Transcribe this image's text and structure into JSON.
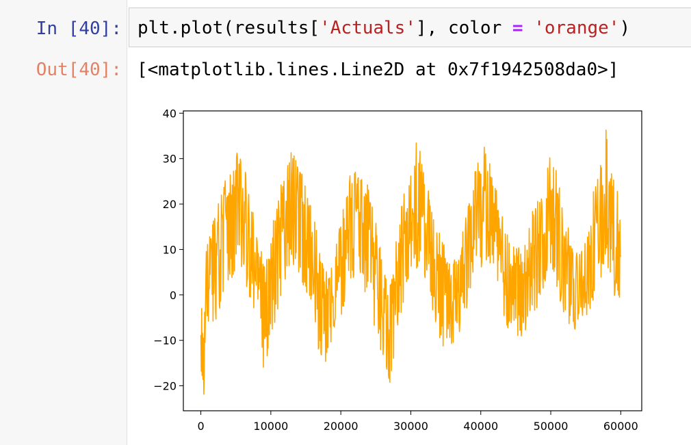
{
  "cell": {
    "in_prompt": "In [40]:",
    "out_prompt": "Out[40]:",
    "code": {
      "part1": "plt.plot(results[",
      "str1": "'Actuals'",
      "part2": "], color ",
      "op": "=",
      "space": " ",
      "str2": "'orange'",
      "part3": ")"
    },
    "output_text": "[<matplotlib.lines.Line2D at 0x7f1942508da0>]"
  },
  "colors": {
    "line": "#ffa500",
    "in_prompt": "#303f9f",
    "out_prompt": "#d84315",
    "string": "#ba2121",
    "operator": "#aa22ff"
  },
  "chart_data": {
    "type": "line",
    "title": "",
    "xlabel": "",
    "ylabel": "",
    "color": "orange",
    "xlim": [
      -2500,
      63000
    ],
    "ylim": [
      -25.5,
      40.5
    ],
    "x_ticks": [
      0,
      10000,
      20000,
      30000,
      40000,
      50000,
      60000
    ],
    "x_tick_labels": [
      "0",
      "10000",
      "20000",
      "30000",
      "40000",
      "50000",
      "60000"
    ],
    "y_ticks": [
      -20,
      -10,
      0,
      10,
      20,
      30,
      40
    ],
    "y_tick_labels": [
      "−20",
      "−10",
      "0",
      "10",
      "20",
      "30",
      "40"
    ],
    "grid": false,
    "series": [
      {
        "x": [
          0,
          400,
          800,
          1500,
          2500,
          3500,
          4500,
          5500,
          6500,
          7500,
          8200,
          9000,
          10000,
          11000,
          12000,
          13000,
          14000,
          15000,
          16000,
          16800,
          17500,
          18200,
          19000,
          20000,
          21000,
          22000,
          23000,
          24000,
          25000,
          26000,
          27000,
          28000,
          29000,
          30000,
          31000,
          32000,
          33000,
          34000,
          35000,
          36000,
          37000,
          38000,
          39000,
          40000,
          41000,
          42000,
          43000,
          44000,
          45000,
          46000,
          47000,
          48000,
          49000,
          50000,
          51000,
          52000,
          53000,
          54000,
          55000,
          56000,
          57000,
          58000,
          59000,
          60000
        ],
        "y": [
          -8,
          -22,
          3,
          7,
          8,
          13,
          16,
          20,
          14,
          8,
          2,
          -3,
          3,
          10,
          15,
          18,
          17,
          12,
          6,
          0,
          -4,
          -6,
          0,
          6,
          12,
          17,
          17,
          10,
          4,
          -3,
          -10,
          2,
          10,
          16,
          18,
          14,
          8,
          2,
          -2,
          -3,
          0,
          8,
          14,
          18,
          20,
          15,
          8,
          3,
          0,
          1,
          5,
          10,
          14,
          17,
          12,
          7,
          2,
          0,
          3,
          9,
          16,
          19,
          12,
          3
        ],
        "envelope": {
          "upper": [
            5,
            -10,
            12,
            18,
            22,
            27,
            31,
            33,
            26,
            20,
            12,
            8,
            13,
            22,
            28,
            34,
            30,
            25,
            18,
            12,
            8,
            6,
            10,
            18,
            25,
            29,
            28,
            24,
            16,
            8,
            2,
            14,
            22,
            28,
            35,
            28,
            20,
            14,
            10,
            8,
            12,
            20,
            26,
            35,
            30,
            26,
            20,
            14,
            10,
            12,
            17,
            22,
            28,
            33,
            26,
            18,
            12,
            10,
            13,
            22,
            30,
            37,
            28,
            18
          ],
          "lower": [
            -16,
            -23,
            -6,
            -6,
            -5,
            0,
            4,
            8,
            2,
            -4,
            -12,
            -17,
            -10,
            -3,
            2,
            6,
            5,
            0,
            -6,
            -12,
            -16,
            -13,
            -8,
            -5,
            0,
            4,
            3,
            -2,
            -8,
            -14,
            -21,
            -8,
            -2,
            4,
            6,
            2,
            -4,
            -9,
            -13,
            -11,
            -8,
            -3,
            2,
            6,
            8,
            4,
            -3,
            -8,
            -10,
            -9,
            -6,
            -3,
            2,
            5,
            0,
            -5,
            -8,
            -7,
            -5,
            -2,
            3,
            6,
            0,
            -3
          ]
        }
      }
    ]
  }
}
